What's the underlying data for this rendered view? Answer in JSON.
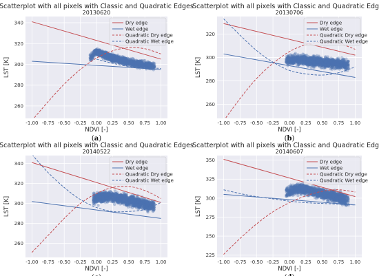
{
  "chart_data": [
    {
      "type": "scatter",
      "title": "Scatterplot with all pixels with Classic and Quadratic Edges",
      "subtitle": "20130620",
      "panel_label": "a",
      "xlabel": "NDVI [-]",
      "ylabel": "LST [K]",
      "xlim": [
        -1.1,
        1.1
      ],
      "ylim": [
        248,
        346
      ],
      "xticks": [
        -1.0,
        -0.75,
        -0.5,
        -0.25,
        0.0,
        0.25,
        0.5,
        0.75,
        1.0
      ],
      "yticks": [
        260,
        280,
        300,
        320,
        340
      ],
      "grid": true,
      "legend_position": "top-right",
      "series": [
        {
          "name": "Dry edge",
          "color": "#c44e52",
          "dash": "solid",
          "x": [
            -1.0,
            1.0
          ],
          "y": [
            341,
            305
          ]
        },
        {
          "name": "Wet edge",
          "color": "#4c72b0",
          "dash": "solid",
          "x": [
            -1.0,
            1.0
          ],
          "y": [
            303,
            295
          ]
        },
        {
          "name": "Quadratic Dry edge",
          "color": "#c44e52",
          "dash": "dashed",
          "x": [
            -1.0,
            -0.75,
            -0.5,
            -0.25,
            0.0,
            0.25,
            0.5,
            0.75,
            1.0
          ],
          "y": [
            246,
            264,
            281,
            295,
            306,
            313,
            316,
            315,
            310
          ]
        },
        {
          "name": "Quadratic Wet edge",
          "color": "#4c72b0",
          "dash": "dashed",
          "x": [
            0.0,
            0.25,
            0.5,
            0.75,
            1.0
          ],
          "y": [
            305,
            301,
            298,
            297,
            296
          ]
        }
      ],
      "cloud": {
        "x_range": [
          -0.1,
          0.9
        ],
        "y_center": [
          -0.1,
          306,
          0.0,
          312,
          0.3,
          305,
          0.6,
          301,
          0.9,
          298
        ],
        "y_spread": 5
      }
    },
    {
      "type": "scatter",
      "title": "Scatterplot with all pixels with Classic and Quadratic Edges",
      "subtitle": "20130706",
      "panel_label": "b",
      "xlabel": "NDVI [-]",
      "ylabel": "LST [K]",
      "xlim": [
        -1.1,
        1.1
      ],
      "ylim": [
        248,
        335
      ],
      "xticks": [
        -1.0,
        -0.75,
        -0.5,
        -0.25,
        0.0,
        0.25,
        0.5,
        0.75,
        1.0
      ],
      "yticks": [
        260,
        280,
        300,
        320
      ],
      "grid": true,
      "legend_position": "top-right",
      "series": [
        {
          "name": "Dry edge",
          "color": "#c44e52",
          "dash": "solid",
          "x": [
            -1.0,
            1.0
          ],
          "y": [
            329,
            302
          ]
        },
        {
          "name": "Wet edge",
          "color": "#4c72b0",
          "dash": "solid",
          "x": [
            -1.0,
            1.0
          ],
          "y": [
            303,
            283
          ]
        },
        {
          "name": "Quadratic Dry edge",
          "color": "#c44e52",
          "dash": "dashed",
          "x": [
            -1.0,
            -0.75,
            -0.5,
            -0.25,
            0.0,
            0.25,
            0.5,
            0.75,
            1.0
          ],
          "y": [
            246,
            265,
            282,
            295,
            305,
            311,
            313,
            312,
            307
          ]
        },
        {
          "name": "Quadratic Wet edge",
          "color": "#4c72b0",
          "dash": "dashed",
          "x": [
            -1.0,
            -0.75,
            -0.5,
            -0.25,
            0.0,
            0.25,
            0.5,
            0.75,
            1.0
          ],
          "y": [
            333,
            319,
            306,
            296,
            289,
            286,
            285,
            287,
            292
          ]
        }
      ],
      "cloud": {
        "x_range": [
          -0.05,
          0.9
        ],
        "y_center": [
          -0.05,
          298,
          0.2,
          298,
          0.5,
          296,
          0.9,
          294
        ],
        "y_spread": 6
      }
    },
    {
      "type": "scatter",
      "title": "Scatterplot with all pixels with Classic and Quadratic Edges",
      "subtitle": "20140522",
      "panel_label": "c",
      "xlabel": "NDVI [-]",
      "ylabel": "LST [K]",
      "xlim": [
        -1.1,
        1.1
      ],
      "ylim": [
        246,
        348
      ],
      "xticks": [
        -1.0,
        -0.75,
        -0.5,
        -0.25,
        0.0,
        0.25,
        0.5,
        0.75,
        1.0
      ],
      "yticks": [
        260,
        280,
        300,
        320,
        340
      ],
      "grid": true,
      "legend_position": "top-right",
      "series": [
        {
          "name": "Dry edge",
          "color": "#c44e52",
          "dash": "solid",
          "x": [
            -1.0,
            1.0
          ],
          "y": [
            341,
            301
          ]
        },
        {
          "name": "Wet edge",
          "color": "#4c72b0",
          "dash": "solid",
          "x": [
            -1.0,
            1.0
          ],
          "y": [
            302,
            285
          ]
        },
        {
          "name": "Quadratic Dry edge",
          "color": "#c44e52",
          "dash": "dashed",
          "x": [
            -1.0,
            -0.75,
            -0.5,
            -0.25,
            0.0,
            0.25,
            0.5,
            0.75,
            1.0
          ],
          "y": [
            251,
            268,
            285,
            300,
            310,
            316,
            317,
            313,
            305
          ]
        },
        {
          "name": "Quadratic Wet edge",
          "color": "#4c72b0",
          "dash": "dashed",
          "x": [
            -1.0,
            -0.75,
            -0.5,
            -0.25,
            0.0,
            0.25,
            0.5,
            0.75,
            1.0
          ],
          "y": [
            349,
            331,
            316,
            304,
            296,
            292,
            292,
            294,
            301
          ]
        }
      ],
      "cloud": {
        "x_range": [
          -0.05,
          0.9
        ],
        "y_center": [
          -0.05,
          305,
          0.2,
          307,
          0.5,
          303,
          0.9,
          297
        ],
        "y_spread": 8
      }
    },
    {
      "type": "scatter",
      "title": "Scatterplot with all pixels with Classic and Quadratic Edges",
      "subtitle": "20140607",
      "panel_label": "d",
      "xlabel": "NDVI [-]",
      "ylabel": "LST [K]",
      "xlim": [
        -1.1,
        1.1
      ],
      "ylim": [
        222,
        356
      ],
      "xticks": [
        -1.0,
        -0.75,
        -0.5,
        -0.25,
        0.0,
        0.25,
        0.5,
        0.75,
        1.0
      ],
      "yticks": [
        225,
        250,
        275,
        300,
        325,
        350
      ],
      "grid": true,
      "legend_position": "top-right",
      "series": [
        {
          "name": "Dry edge",
          "color": "#c44e52",
          "dash": "solid",
          "x": [
            -1.0,
            1.0
          ],
          "y": [
            351,
            302
          ]
        },
        {
          "name": "Wet edge",
          "color": "#4c72b0",
          "dash": "solid",
          "x": [
            -1.0,
            1.0
          ],
          "y": [
            305,
            291
          ]
        },
        {
          "name": "Quadratic Dry edge",
          "color": "#c44e52",
          "dash": "dashed",
          "x": [
            -1.0,
            -0.75,
            -0.5,
            -0.25,
            0.0,
            0.25,
            0.5,
            0.75,
            1.0
          ],
          "y": [
            226,
            247,
            266,
            282,
            294,
            303,
            309,
            311,
            308
          ]
        },
        {
          "name": "Quadratic Wet edge",
          "color": "#4c72b0",
          "dash": "dashed",
          "x": [
            -1.0,
            -0.75,
            -0.5,
            -0.25,
            0.0,
            0.25,
            0.5,
            0.75,
            1.0
          ],
          "y": [
            311,
            306,
            302,
            299,
            296,
            294,
            293,
            292,
            291
          ]
        }
      ],
      "cloud": {
        "x_range": [
          -0.05,
          0.9
        ],
        "y_center": [
          -0.05,
          308,
          0.15,
          313,
          0.5,
          306,
          0.9,
          297
        ],
        "y_spread": 10
      }
    }
  ],
  "colors": {
    "axes_bg": "#eaeaf2",
    "grid": "#ffffff",
    "cloud": "#4c72b0",
    "legend_bg": "#eaeaf2"
  }
}
